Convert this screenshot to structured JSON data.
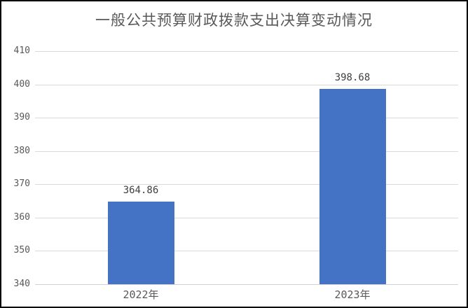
{
  "title": "一般公共预算财政拨款支出决算变动情况",
  "chart_data": {
    "type": "bar",
    "title": "一般公共预算财政拨款支出决算变动情况",
    "categories": [
      "2022年",
      "2023年"
    ],
    "values": [
      364.86,
      398.68
    ],
    "data_labels": [
      "364.86",
      "398.68"
    ],
    "ytick_labels": [
      "340",
      "350",
      "360",
      "370",
      "380",
      "390",
      "400",
      "410"
    ],
    "yticks": [
      340,
      350,
      360,
      370,
      380,
      390,
      400,
      410
    ],
    "ylim": [
      340,
      410
    ],
    "xlabel": "",
    "ylabel": "",
    "grid": true,
    "legend": "none",
    "colors": {
      "bar": "#4472C4",
      "gridline": "#D9D9D9",
      "axis_text": "#595959",
      "data_label_text": "#404040",
      "title_text": "#595959",
      "frame_border": "#000000",
      "background": "#FFFFFF"
    }
  }
}
